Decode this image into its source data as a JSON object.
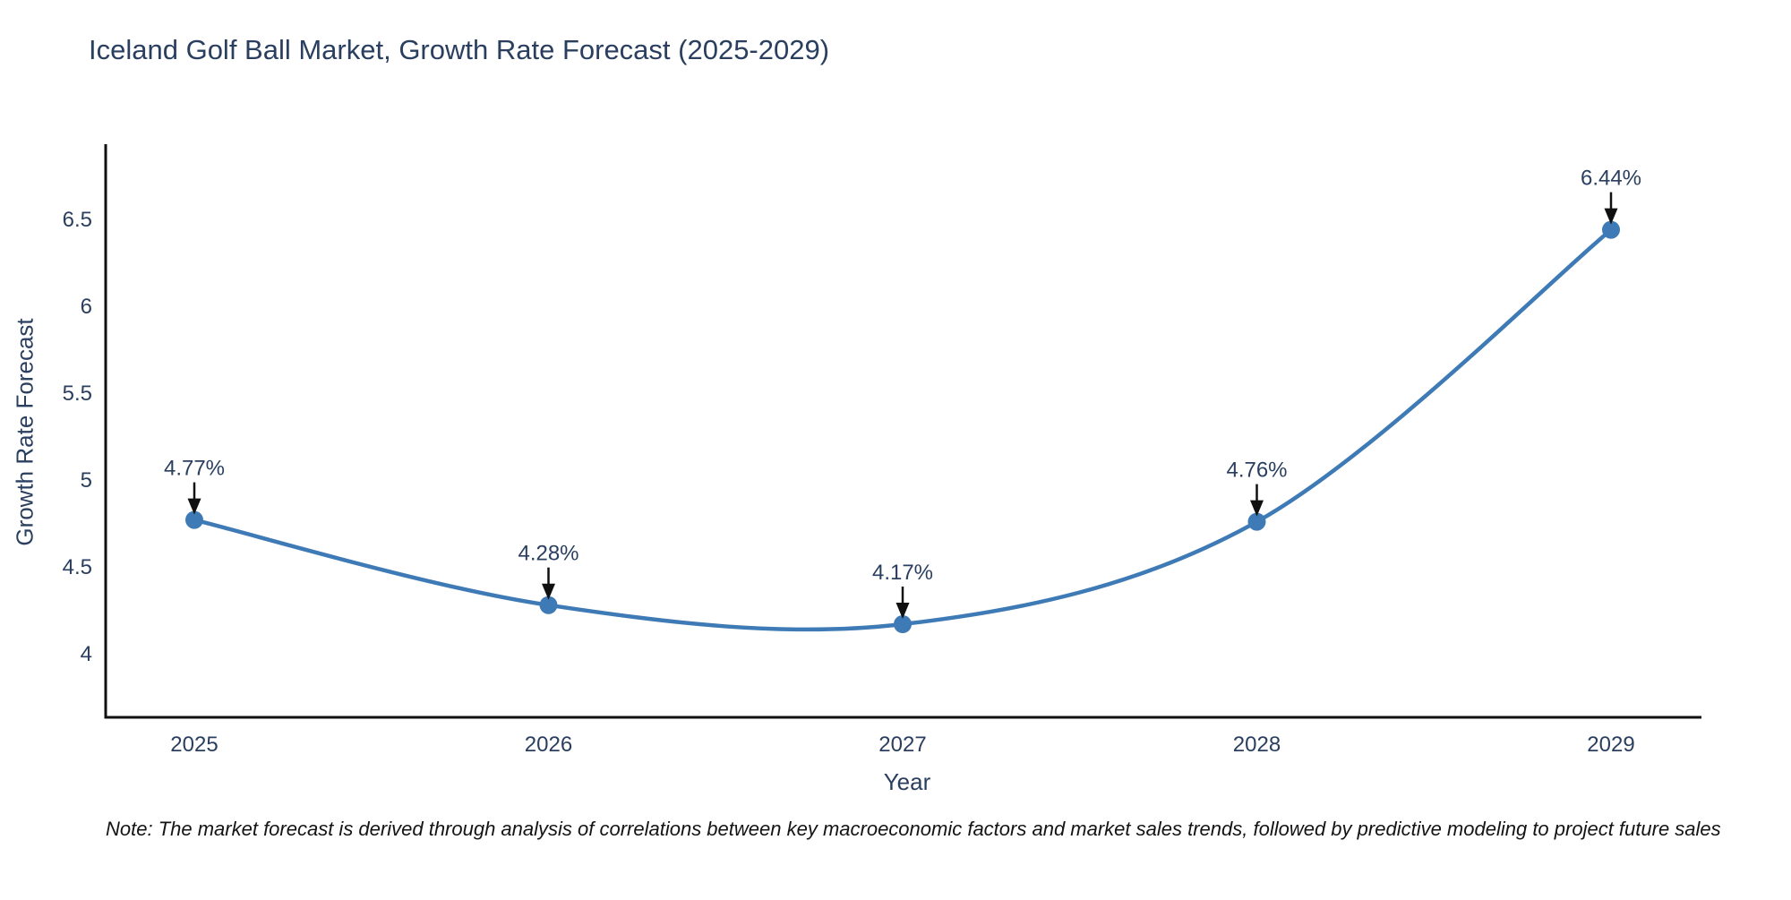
{
  "chart_data": {
    "type": "line",
    "title": "Iceland Golf Ball Market, Growth Rate Forecast (2025-2029)",
    "xlabel": "Year",
    "ylabel": "Growth Rate Forecast",
    "x": [
      2025,
      2026,
      2027,
      2028,
      2029
    ],
    "series": [
      {
        "name": "Growth Rate Forecast",
        "values": [
          4.77,
          4.28,
          4.17,
          4.76,
          6.44
        ],
        "point_labels": [
          "4.77%",
          "4.28%",
          "4.17%",
          "4.76%",
          "6.44%"
        ]
      }
    ],
    "yticks": [
      4,
      4.5,
      5,
      5.5,
      6,
      6.5
    ],
    "ylim": [
      3.634,
      6.933
    ],
    "line_shape": "spline",
    "grid": false,
    "legend_position": "none",
    "colors": {
      "line": "#3e7ab5",
      "marker": "#3e7ab5",
      "axis_line": "#101010",
      "title_text": "#2a3f5f",
      "tick_text": "#2a3f5f",
      "annotation_text": "#2a3f5f",
      "arrow": "#101010",
      "background": "#ffffff"
    }
  },
  "note": {
    "text": "Note: The market forecast is derived through analysis of correlations between key macroeconomic factors and market sales trends, followed by predictive modeling to project future sales"
  }
}
